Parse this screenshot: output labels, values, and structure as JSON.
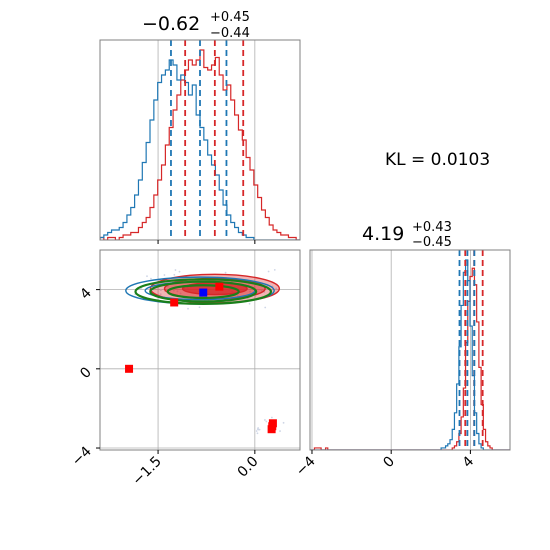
{
  "colors": {
    "red": "#d62728",
    "blue": "#1f77b4",
    "green": "#1a7f1a",
    "marker_blue": "#0000ff",
    "marker_red": "#ff0000",
    "grid": "#b0b0b0",
    "frame": "#808080"
  },
  "kl_text": "KL = 0.0103",
  "chart_data": [
    {
      "type": "histogram",
      "panel": "top-left",
      "parameter": "x",
      "title": {
        "median": "−0.62",
        "plus": "+0.45",
        "minus": "−0.44"
      },
      "xlim": [
        -2.4,
        0.7
      ],
      "series": [
        {
          "name": "",
          "color": "red",
          "quantiles": [
            -1.08,
            -0.62,
            -0.18
          ],
          "x_range": [
            -2.4,
            0.7
          ],
          "counts": [
            1,
            0,
            1,
            1,
            0,
            1,
            2,
            2,
            3,
            3,
            5,
            7,
            9,
            13,
            18,
            24,
            30,
            38,
            45,
            52,
            58,
            64,
            68,
            72,
            70,
            72,
            76,
            69,
            68,
            70,
            73,
            66,
            60,
            62,
            56,
            50,
            44,
            40,
            33,
            28,
            22,
            17,
            12,
            9,
            6,
            4,
            3,
            2,
            2,
            1,
            1,
            0
          ]
        },
        {
          "name": "",
          "color": "blue",
          "quantiles": [
            -1.3,
            -0.85,
            -0.44
          ],
          "x_range": [
            -2.4,
            0.7
          ],
          "counts": [
            1,
            2,
            3,
            4,
            4,
            5,
            7,
            10,
            13,
            18,
            24,
            31,
            39,
            48,
            56,
            63,
            66,
            68,
            72,
            70,
            64,
            66,
            63,
            58,
            62,
            50,
            45,
            40,
            34,
            30,
            26,
            20,
            14,
            10,
            7,
            5,
            3,
            2,
            1,
            1,
            0,
            0,
            0,
            0,
            0,
            0,
            0,
            0,
            0,
            0,
            0,
            0
          ]
        }
      ]
    },
    {
      "type": "scatter_contour",
      "panel": "bottom-left",
      "xlim": [
        -2.4,
        0.7
      ],
      "ylim": [
        -4.1,
        6.0
      ],
      "x_ticks": [
        -1.5,
        0.0
      ],
      "x_tick_labels": [
        "−1.5",
        "0.0"
      ],
      "y_ticks": [
        -4,
        0,
        4
      ],
      "y_tick_labels": [
        "−4",
        "0",
        "4"
      ],
      "contours": [
        {
          "color": "red",
          "filled": true,
          "center": [
            -0.62,
            4.05
          ],
          "radii": [
            [
              1.0,
              0.72
            ],
            [
              0.78,
              0.52
            ],
            [
              0.5,
              0.3
            ]
          ]
        },
        {
          "color": "blue",
          "filled": false,
          "center": [
            -0.85,
            3.95
          ],
          "radii": [
            [
              1.15,
              0.68
            ],
            [
              0.85,
              0.45
            ]
          ]
        },
        {
          "color": "green",
          "filled": false,
          "center": [
            -0.8,
            3.9
          ],
          "radii": [
            [
              1.05,
              0.62
            ],
            [
              0.82,
              0.5
            ],
            [
              0.55,
              0.32
            ]
          ]
        }
      ],
      "markers": [
        {
          "color": "marker_blue",
          "x": -0.8,
          "y": 3.85
        },
        {
          "color": "marker_red",
          "x": -0.55,
          "y": 4.15
        },
        {
          "color": "marker_red",
          "x": -1.25,
          "y": 3.35
        },
        {
          "color": "marker_red",
          "x": -1.95,
          "y": 0.0
        },
        {
          "color": "marker_red",
          "x": 0.28,
          "y": -2.75
        },
        {
          "color": "marker_red",
          "x": 0.26,
          "y": -3.05
        },
        {
          "color": "marker_red",
          "x": 0.27,
          "y": -2.9
        }
      ]
    },
    {
      "type": "histogram",
      "panel": "bottom-right",
      "parameter": "y",
      "title": {
        "median": "4.19",
        "plus": "+0.43",
        "minus": "−0.45"
      },
      "xlim": [
        -4.1,
        6.0
      ],
      "x_ticks": [
        -4,
        0,
        4
      ],
      "x_tick_labels": [
        "−4",
        "0",
        "4"
      ],
      "series": [
        {
          "name": "",
          "color": "red",
          "quantiles": [
            3.74,
            4.19,
            4.62
          ],
          "x_range": [
            -4.1,
            6.0
          ],
          "counts": [
            0,
            0,
            1,
            1,
            1,
            0,
            0,
            1,
            0,
            0,
            0,
            0,
            0,
            0,
            0,
            0,
            0,
            0,
            0,
            0,
            0,
            0,
            0,
            0,
            0,
            0,
            0,
            0,
            0,
            0,
            0,
            0,
            0,
            0,
            0,
            0,
            0,
            0,
            0,
            0,
            0,
            0,
            0,
            0,
            0,
            0,
            0,
            0,
            0,
            0,
            0,
            0,
            0,
            0,
            0,
            0,
            0,
            0,
            0,
            0,
            0,
            0,
            0,
            0,
            1,
            2,
            4,
            8,
            16,
            30,
            52,
            72,
            84,
            88,
            80,
            62,
            40,
            22,
            10,
            4,
            2,
            1,
            0,
            0,
            0,
            0,
            0,
            0,
            0,
            0
          ]
        },
        {
          "name": "",
          "color": "blue",
          "quantiles": [
            3.45,
            3.85,
            4.2
          ],
          "x_range": [
            -4.1,
            6.0
          ],
          "counts": [
            0,
            0,
            0,
            0,
            0,
            0,
            0,
            0,
            0,
            0,
            0,
            0,
            0,
            0,
            0,
            0,
            0,
            0,
            0,
            0,
            0,
            0,
            0,
            0,
            0,
            0,
            0,
            0,
            0,
            0,
            0,
            0,
            0,
            0,
            0,
            0,
            0,
            0,
            0,
            0,
            0,
            0,
            0,
            0,
            0,
            0,
            0,
            0,
            0,
            0,
            0,
            0,
            0,
            0,
            0,
            0,
            0,
            0,
            0,
            1,
            1,
            2,
            3,
            5,
            10,
            18,
            32,
            50,
            70,
            86,
            92,
            82,
            60,
            36,
            18,
            8,
            3,
            1,
            0,
            0,
            0,
            0,
            0,
            0,
            0,
            0,
            0,
            0,
            0,
            0
          ]
        }
      ]
    }
  ]
}
